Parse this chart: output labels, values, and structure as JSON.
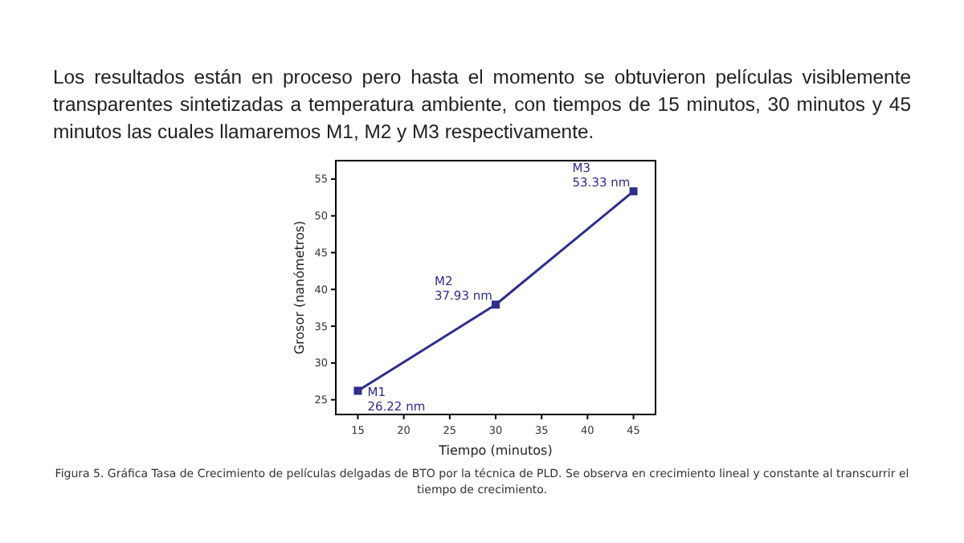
{
  "chart_data": {
    "type": "line",
    "xlabel": "Tiempo (minutos)",
    "ylabel": "Grosor (nanómetros)",
    "x": [
      15,
      30,
      45
    ],
    "series": [
      {
        "color": "#2e2e8c",
        "values": [
          26.22,
          37.93,
          53.33
        ]
      }
    ],
    "xlim": [
      12.6,
      47.4
    ],
    "xticks": [
      15,
      20,
      25,
      30,
      35,
      40,
      45
    ],
    "ylim": [
      23,
      57.5
    ],
    "yticks": [
      25,
      30,
      35,
      40,
      45,
      50,
      55
    ],
    "grid": false,
    "marker": "square",
    "line_style": "solid",
    "annotations": [
      "Los resultados están en proceso pero hasta el momento se obtuvieron películas visiblemente transparentes sintetizadas a temperatura ambiente, con tiempos de 15 minutos, 30 minutos y 45 minutos las cuales llamaremos M1, M2 y M3 respectivamente.",
      "Figura 5. Gráfica Tasa de Crecimiento de películas delgadas de BTO por la técnica de PLD. Se observa en crecimiento lineal y constante al transcurrir el tiempo de crecimiento.",
      {
        "text": "M1\n26.22 nm",
        "x": 15,
        "y": 26.22
      },
      {
        "text": "M2\n37.93 nm",
        "x": 30,
        "y": 37.93
      },
      {
        "text": "M3\n53.33 nm",
        "x": 45,
        "y": 53.33
      }
    ]
  }
}
